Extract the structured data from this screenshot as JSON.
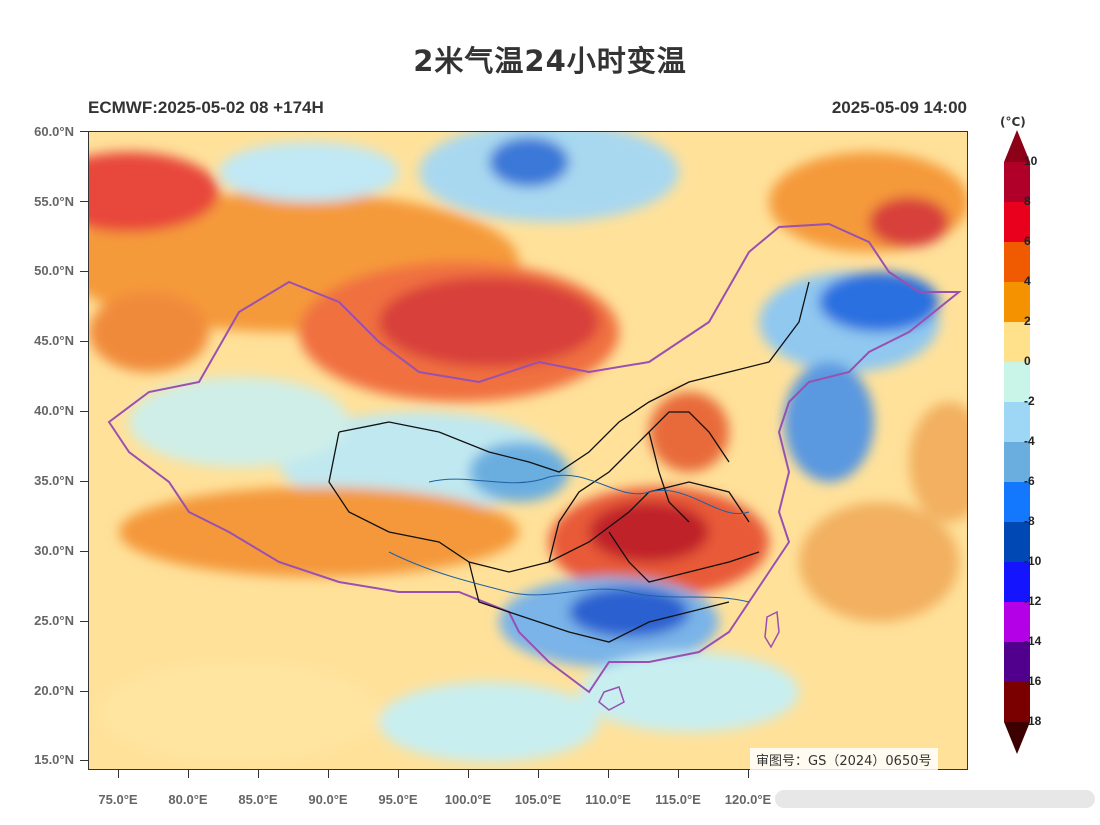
{
  "title": "2米气温24小时变温",
  "model_run": "ECMWF:2025-05-02 08 +174H",
  "valid_time": "2025-05-09 14:00",
  "unit": "(°C)",
  "review_number": "审图号：GS（2024）0650号",
  "lat_labels": [
    "60.0°N",
    "55.0°N",
    "50.0°N",
    "45.0°N",
    "40.0°N",
    "35.0°N",
    "30.0°N",
    "25.0°N",
    "20.0°N",
    "15.0°N"
  ],
  "lon_labels": [
    "75.0°E",
    "80.0°E",
    "85.0°E",
    "90.0°E",
    "95.0°E",
    "100.0°E",
    "105.0°E",
    "110.0°E",
    "115.0°E",
    "120.0°E"
  ],
  "colorbar": {
    "labels": [
      "10",
      "8",
      "6",
      "4",
      "2",
      "0",
      "-2",
      "-4",
      "-6",
      "-8",
      "-10",
      "-12",
      "-14",
      "-16",
      "-18"
    ],
    "colors": [
      "#b0002a",
      "#e8001c",
      "#f05a00",
      "#f59200",
      "#ffe18c",
      "#c8f5e8",
      "#9ed6f5",
      "#6aaee0",
      "#1478ff",
      "#0048b4",
      "#1414ff",
      "#b400e6",
      "#50008c",
      "#7a0000"
    ],
    "top_cap_color": "#8c0018",
    "bottom_cap_color": "#3c0000"
  }
}
